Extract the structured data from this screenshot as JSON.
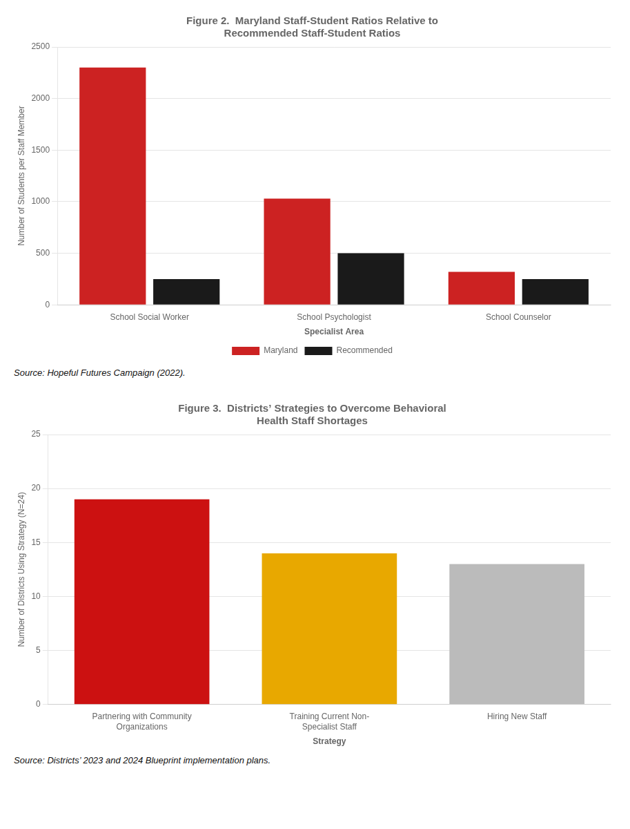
{
  "chart_data": [
    {
      "type": "bar",
      "title": "Figure 2.  Maryland Staff-Student Ratios Relative to\nRecommended Staff-Student Ratios",
      "categories": [
        "School Social Worker",
        "School Psychologist",
        "School Counselor"
      ],
      "series": [
        {
          "name": "Maryland",
          "color": "#CC2222",
          "values": [
            2300,
            1030,
            320
          ]
        },
        {
          "name": "Recommended",
          "color": "#1a1a1a",
          "values": [
            250,
            500,
            250
          ]
        }
      ],
      "x_label": "Specialist Area",
      "y_label": "Number of Students per Staff Member",
      "ylim": [
        0,
        2500
      ],
      "yticks": [
        0,
        500,
        1000,
        1500,
        2000,
        2500
      ],
      "grid": true,
      "legend": "bottom",
      "annotations": [
        "Source: Hopeful Futures Campaign (2022)."
      ]
    },
    {
      "type": "bar",
      "title": "Figure 3.  Districts’ Strategies to Overcome Behavioral\nHealth Staff Shortages",
      "categories": [
        "Partnering with Community\nOrganizations",
        "Training Current Non-\nSpecialist Staff",
        "Hiring New Staff"
      ],
      "values": [
        19,
        14,
        13
      ],
      "colors": [
        "#CC1111",
        "#E8A800",
        "#BBBBBB"
      ],
      "x_label": "Strategy",
      "y_label": "Number of Districts Using Strategy (N=24)",
      "ylim": [
        0,
        25
      ],
      "yticks": [
        0,
        5,
        10,
        15,
        20,
        25
      ],
      "grid": true,
      "annotations": [
        "Source: Districts’ 2023 and 2024 Blueprint implementation plans."
      ]
    }
  ]
}
